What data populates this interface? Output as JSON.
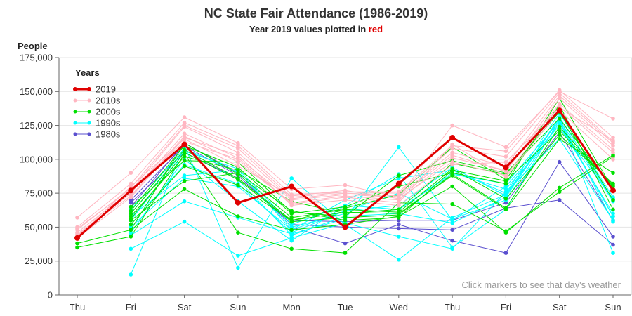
{
  "chart_data": {
    "type": "line",
    "title": "NC State Fair Attendance (1986-2019)",
    "subtitle_prefix": "Year 2019 values plotted in ",
    "subtitle_highlight": "red",
    "ylabel": "People",
    "xlabel": "",
    "ylim": [
      0,
      175000
    ],
    "yticks": [
      0,
      25000,
      50000,
      75000,
      100000,
      125000,
      150000,
      175000
    ],
    "ytick_labels": [
      "0",
      "25,000",
      "50,000",
      "75,000",
      "100,000",
      "125,000",
      "150,000",
      "175,000"
    ],
    "categories": [
      "Thu",
      "Fri",
      "Sat",
      "Sun",
      "Mon",
      "Tue",
      "Wed",
      "Thu",
      "Fri",
      "Sat",
      "Sun"
    ],
    "grid": true,
    "legend": {
      "title": "Years",
      "placement": "top-left",
      "entries": [
        {
          "label": "2019",
          "color": "#e00000"
        },
        {
          "label": "2010s",
          "color": "#ffb6c1"
        },
        {
          "label": "2000s",
          "color": "#00e000"
        },
        {
          "label": "1990s",
          "color": "#00ffff"
        },
        {
          "label": "1980s",
          "color": "#5a4fcf"
        }
      ]
    },
    "note": "Click markers to see that day's weather",
    "series": [
      {
        "group": "1980s",
        "values": [
          null,
          65000,
          112000,
          90000,
          50000,
          38000,
          52000,
          40000,
          31000,
          98000,
          43000
        ]
      },
      {
        "group": "1980s",
        "values": [
          null,
          70000,
          110000,
          88000,
          52000,
          50000,
          49000,
          48000,
          64000,
          70000,
          37000
        ]
      },
      {
        "group": "1980s",
        "values": [
          null,
          68000,
          105000,
          86000,
          55000,
          54000,
          55000,
          55000,
          68000,
          120000,
          55000
        ]
      },
      {
        "group": "1990s",
        "values": [
          null,
          15000,
          110000,
          20000,
          86000,
          52000,
          26000,
          57000,
          74000,
          130000,
          31000
        ]
      },
      {
        "group": "1990s",
        "values": [
          null,
          34000,
          54000,
          29000,
          42000,
          53000,
          43000,
          34000,
          76000,
          115000,
          55000
        ]
      },
      {
        "group": "1990s",
        "values": [
          null,
          44000,
          69000,
          57000,
          45000,
          56000,
          109000,
          55000,
          80000,
          125000,
          60000
        ]
      },
      {
        "group": "1990s",
        "values": [
          null,
          46000,
          100000,
          69000,
          40000,
          66000,
          89000,
          35000,
          63000,
          129000,
          69000
        ]
      },
      {
        "group": "1990s",
        "values": [
          null,
          50000,
          86000,
          80000,
          48000,
          62000,
          75000,
          56000,
          70000,
          127000,
          58000
        ]
      },
      {
        "group": "1990s",
        "values": [
          null,
          55000,
          105000,
          85000,
          44000,
          58000,
          60000,
          53000,
          72000,
          130000,
          54000
        ]
      },
      {
        "group": "1990s",
        "values": [
          null,
          60000,
          106000,
          93000,
          52000,
          66000,
          63000,
          90000,
          78000,
          123000,
          71000
        ]
      },
      {
        "group": "1990s",
        "values": [
          null,
          63000,
          108000,
          90000,
          50000,
          60000,
          63000,
          89000,
          82000,
          128000,
          58000
        ]
      },
      {
        "group": "1990s",
        "values": [
          null,
          58000,
          88000,
          92000,
          48000,
          70000,
          86000,
          92000,
          75000,
          134000,
          72000
        ]
      },
      {
        "group": "1990s",
        "values": [
          null,
          52000,
          96000,
          82000,
          46000,
          62000,
          66000,
          94000,
          73000,
          131000,
          70000
        ]
      },
      {
        "group": "2000s",
        "values": [
          35000,
          43000,
          104000,
          46000,
          34000,
          31000,
          68000,
          67000,
          47000,
          76000,
          102000
        ]
      },
      {
        "group": "2000s",
        "values": [
          38000,
          48000,
          78000,
          58000,
          48000,
          52000,
          58000,
          80000,
          46000,
          79000,
          103000
        ]
      },
      {
        "group": "2000s",
        "values": [
          null,
          52000,
          95000,
          81000,
          55000,
          61000,
          60000,
          88000,
          63000,
          115000,
          90000
        ]
      },
      {
        "group": "2000s",
        "values": [
          null,
          55000,
          84000,
          90000,
          62000,
          55000,
          57000,
          92000,
          84000,
          121000,
          81000
        ]
      },
      {
        "group": "2000s",
        "values": [
          null,
          58000,
          102000,
          92000,
          69000,
          60000,
          63000,
          97000,
          89000,
          135000,
          70000
        ]
      },
      {
        "group": "2000s",
        "values": [
          null,
          60000,
          107000,
          86000,
          55000,
          64000,
          74000,
          109000,
          85000,
          140000,
          63000
        ]
      },
      {
        "group": "2000s",
        "values": [
          null,
          62000,
          110000,
          94000,
          60000,
          65000,
          80000,
          90000,
          82000,
          145000,
          78000
        ]
      },
      {
        "group": "2000s",
        "values": [
          null,
          65000,
          99000,
          98000,
          61000,
          58000,
          88000,
          99000,
          90000,
          130000,
          78000
        ]
      },
      {
        "group": "2000s",
        "values": [
          null,
          56000,
          105000,
          85000,
          54000,
          57000,
          59000,
          89000,
          64000,
          124000,
          80000
        ]
      },
      {
        "group": "2000s",
        "values": [
          null,
          48000,
          112000,
          89000,
          57000,
          63000,
          61000,
          93000,
          71000,
          118000,
          82000
        ]
      },
      {
        "group": "2010s",
        "values": [
          57000,
          90000,
          131000,
          112000,
          78000,
          81000,
          72000,
          125000,
          109000,
          150000,
          130000
        ]
      },
      {
        "group": "2010s",
        "values": [
          50000,
          82000,
          127000,
          110000,
          74000,
          76000,
          76000,
          110000,
          106000,
          151000,
          116000
        ]
      },
      {
        "group": "2010s",
        "values": [
          48000,
          79000,
          125000,
          108000,
          72000,
          76000,
          75000,
          108000,
          102000,
          149000,
          113000
        ]
      },
      {
        "group": "2010s",
        "values": [
          46000,
          77000,
          124000,
          105000,
          71000,
          75000,
          73000,
          105000,
          95000,
          147000,
          112000
        ]
      },
      {
        "group": "2010s",
        "values": [
          44000,
          75000,
          119000,
          101000,
          70000,
          74000,
          72000,
          103000,
          91000,
          145000,
          110000
        ]
      },
      {
        "group": "2010s",
        "values": [
          45000,
          73000,
          117000,
          98000,
          68000,
          73000,
          70000,
          101000,
          92000,
          141000,
          107000
        ]
      },
      {
        "group": "2010s",
        "values": [
          43000,
          80000,
          115000,
          95000,
          73000,
          77000,
          71000,
          98000,
          88000,
          139000,
          105000
        ]
      },
      {
        "group": "2010s",
        "values": [
          49000,
          78000,
          113000,
          100000,
          67000,
          72000,
          68000,
          111000,
          87000,
          136000,
          100000
        ]
      },
      {
        "group": "2010s",
        "values": [
          42000,
          72000,
          116000,
          103000,
          66000,
          70000,
          66000,
          96000,
          98000,
          138000,
          114000
        ]
      },
      {
        "group": "2019",
        "values": [
          42000,
          77000,
          111000,
          68000,
          80000,
          50000,
          82000,
          116000,
          94000,
          136000,
          77000
        ]
      }
    ]
  }
}
